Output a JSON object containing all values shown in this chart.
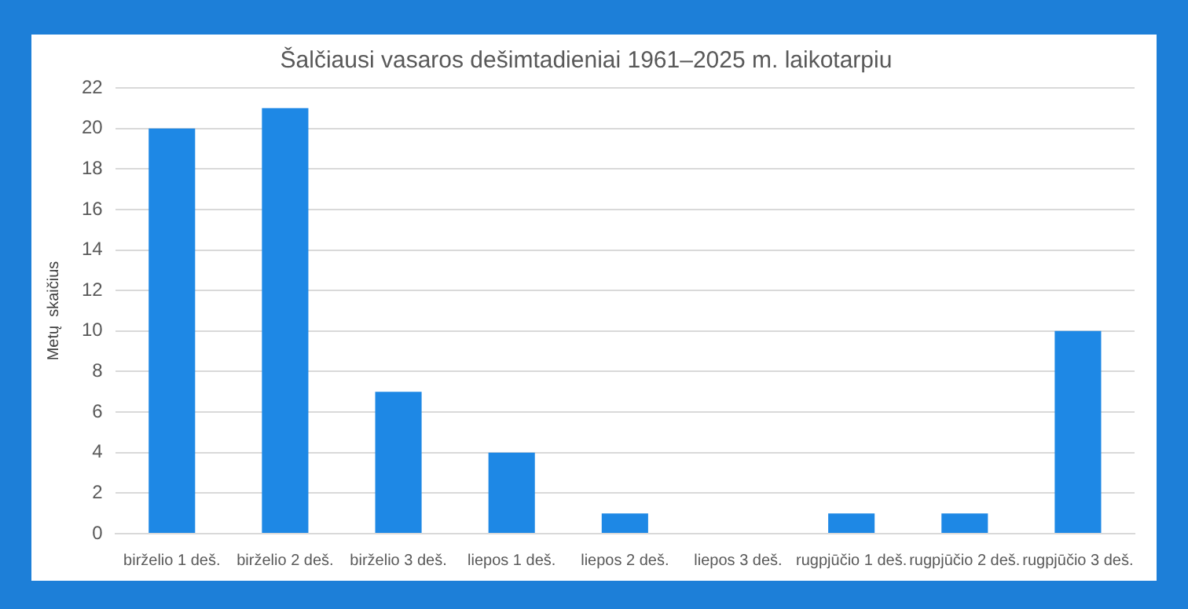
{
  "chart_data": {
    "type": "bar",
    "title": "Šalčiausi vasaros dešimtadieniai 1961–2025 m. laikotarpiu",
    "ylabel": "Metų  skaičius",
    "categories": [
      "birželio 1 deš.",
      "birželio 2 deš.",
      "birželio 3 deš.",
      "liepos 1 deš.",
      "liepos 2 deš.",
      "liepos 3 deš.",
      "rugpjūčio 1 deš.",
      "rugpjūčio 2 deš.",
      "rugpjūčio 3 deš."
    ],
    "values": [
      20,
      21,
      7,
      4,
      1,
      0,
      1,
      1,
      10
    ],
    "color": "#1e88e5",
    "ylim": [
      0,
      22
    ],
    "yticks": [
      0,
      2,
      4,
      6,
      8,
      10,
      12,
      14,
      16,
      18,
      20,
      22
    ],
    "grid": "y"
  }
}
